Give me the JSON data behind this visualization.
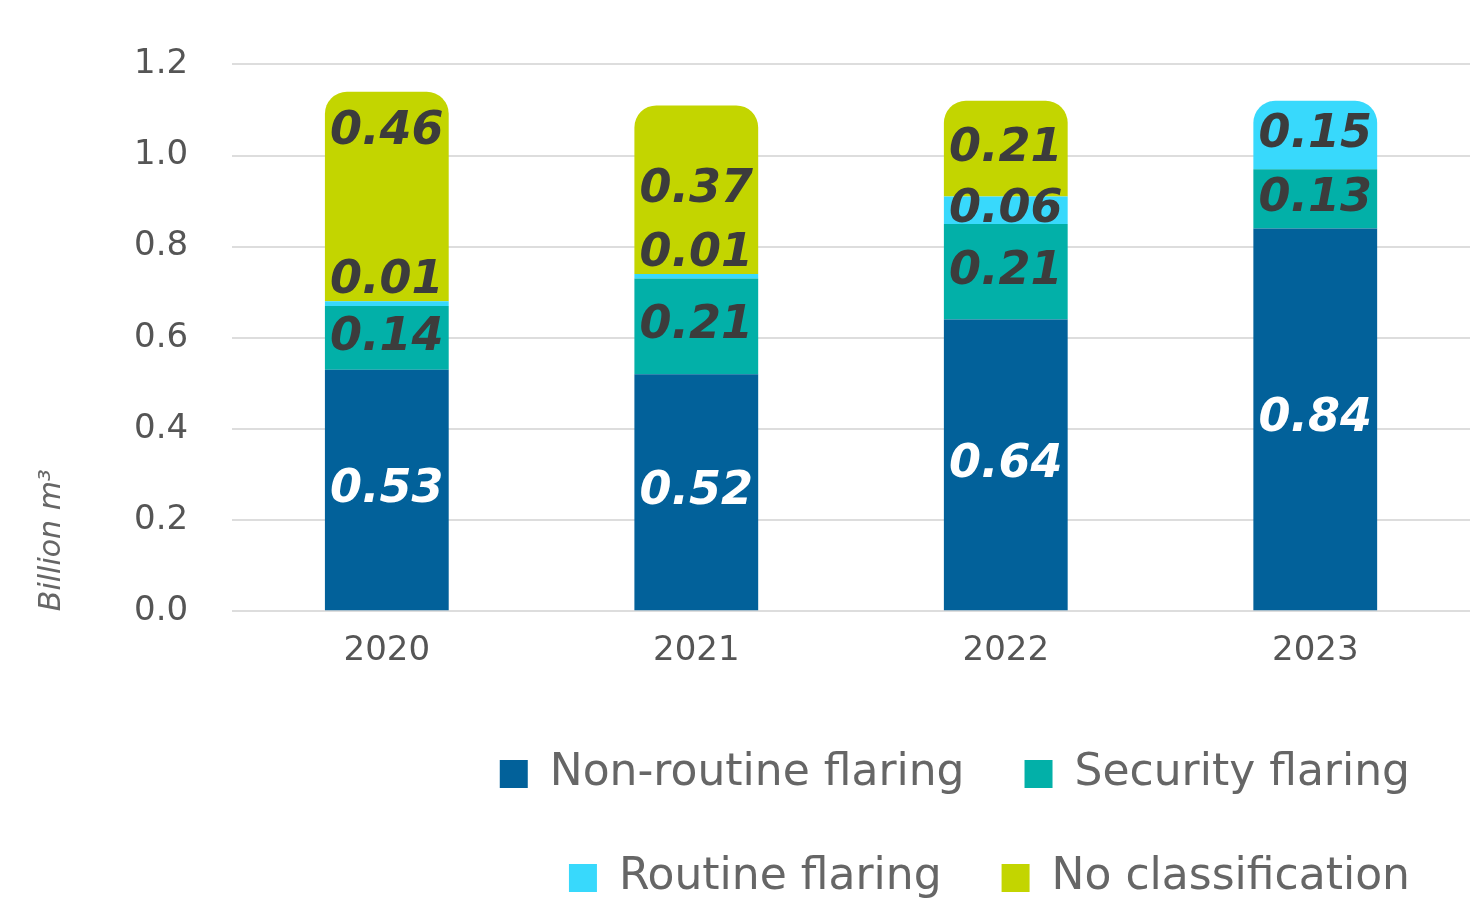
{
  "chart_data": {
    "type": "bar",
    "stacked": true,
    "ylabel": "Billion m³",
    "categories": [
      "2020",
      "2021",
      "2022",
      "2023"
    ],
    "series": [
      {
        "name": "Non-routine flaring",
        "color": "#02619a",
        "values": [
          0.53,
          0.52,
          0.64,
          0.84
        ]
      },
      {
        "name": "Security flaring",
        "color": "#02b0a8",
        "values": [
          0.14,
          0.21,
          0.21,
          0.13
        ]
      },
      {
        "name": "Routine flaring",
        "color": "#38d9fc",
        "values": [
          0.01,
          0.01,
          0.06,
          0.15
        ]
      },
      {
        "name": "No classification",
        "color": "#c3d500",
        "values": [
          0.46,
          0.37,
          0.21,
          null
        ]
      }
    ],
    "ylim": [
      0,
      1.2
    ],
    "yticks": [
      {
        "value": 0,
        "label": "0.0"
      },
      0.2,
      0.4,
      0.6,
      0.8,
      {
        "value": 1,
        "label": "1.0"
      },
      1.2
    ],
    "grid": "y",
    "legend": "bottom",
    "data_labels": true
  }
}
